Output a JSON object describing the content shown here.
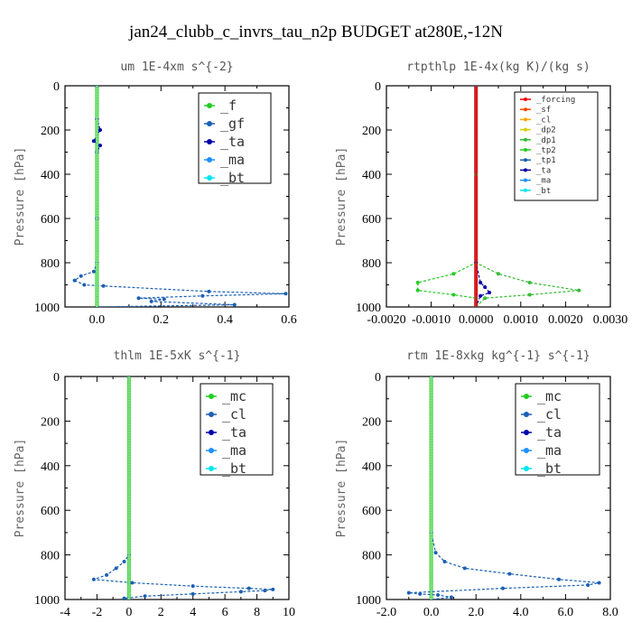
{
  "figure_title": "jan24_clubb_c_invrs_tau_n2p  BUDGET at280E,-12N",
  "chart_data": [
    {
      "type": "line",
      "title": "um   1E-4xm s^{-2}",
      "ylabel": "Pressure [hPa]",
      "xlim": [
        -0.1,
        0.6
      ],
      "xticks": [
        0.0,
        0.2,
        0.4,
        0.6
      ],
      "xtick_labels": [
        "0.0",
        "0.2",
        "0.4",
        "0.6"
      ],
      "ylim": [
        1000,
        0
      ],
      "yticks": [
        0,
        200,
        400,
        600,
        800,
        1000
      ],
      "legend": "top-right",
      "series": [
        {
          "name": "_f",
          "color": "#22cc22",
          "x": [
            0.0,
            0.0,
            0.0,
            0.0,
            0.0,
            0.0
          ],
          "y": [
            0,
            200,
            400,
            600,
            800,
            1000
          ]
        },
        {
          "name": "_gf",
          "color": "#1a5fb4",
          "x": [
            0.0,
            0.0,
            0.0,
            0.0,
            -0.01,
            -0.05,
            -0.07,
            -0.04,
            0.02,
            0.35,
            0.59,
            0.33,
            0.13,
            0.21,
            0.17,
            0.43,
            0.0
          ],
          "y": [
            0,
            300,
            600,
            800,
            840,
            860,
            880,
            900,
            905,
            930,
            940,
            950,
            960,
            965,
            975,
            990,
            1000
          ]
        },
        {
          "name": "_ta",
          "color": "#0000aa",
          "x": [
            0.0,
            0.0,
            0.01,
            -0.01,
            0.01,
            0.0,
            0.0,
            0.0
          ],
          "y": [
            0,
            150,
            200,
            250,
            270,
            300,
            600,
            1000
          ]
        },
        {
          "name": "_ma",
          "color": "#1e90ff",
          "x": [
            0.0,
            0.0,
            0.0,
            0.0
          ],
          "y": [
            0,
            400,
            800,
            1000
          ]
        },
        {
          "name": "_bt",
          "color": "#00e5ee",
          "x": [
            0.0,
            0.0,
            0.0,
            0.0
          ],
          "y": [
            0,
            400,
            800,
            1000
          ]
        }
      ]
    },
    {
      "type": "line",
      "title": "rtpthlp   1E-4x(kg K)/(kg s)",
      "ylabel": "Pressure [hPa]",
      "xlim": [
        -0.002,
        0.003
      ],
      "xticks": [
        -0.002,
        -0.001,
        0.0,
        0.001,
        0.002,
        0.003
      ],
      "xtick_labels": [
        "-0.0020",
        "-0.0010",
        "0.0000",
        "0.0010",
        "0.0020",
        "0.0030"
      ],
      "ylim": [
        1000,
        0
      ],
      "yticks": [
        0,
        200,
        400,
        600,
        800,
        1000
      ],
      "legend": "top-right",
      "series": [
        {
          "name": "_forcing",
          "color": "#ee0000",
          "x": [
            0.0,
            0.0,
            0.0,
            0.0
          ],
          "y": [
            0,
            400,
            800,
            1000
          ]
        },
        {
          "name": "_sf",
          "color": "#ff4400",
          "x": [
            0.0,
            0.0,
            0.0,
            0.0
          ],
          "y": [
            0,
            400,
            800,
            1000
          ]
        },
        {
          "name": "_cl",
          "color": "#ffa500",
          "x": [
            0.0,
            0.0,
            0.0,
            0.0
          ],
          "y": [
            0,
            400,
            800,
            1000
          ]
        },
        {
          "name": "_dp2",
          "color": "#ddcc00",
          "x": [
            0.0,
            0.0,
            0.0,
            0.0
          ],
          "y": [
            0,
            400,
            800,
            1000
          ]
        },
        {
          "name": "_dp1",
          "color": "#33bb33",
          "x": [
            0.0,
            0.0,
            0.0,
            0.0005,
            0.0012,
            0.0023,
            0.0012,
            0.0002,
            0.0
          ],
          "y": [
            0,
            400,
            800,
            850,
            890,
            925,
            945,
            960,
            1000
          ]
        },
        {
          "name": "_tp2",
          "color": "#22cc22",
          "x": [
            0.0,
            0.0,
            0.0,
            -0.0005,
            -0.0013,
            -0.0013,
            -0.0005,
            0.0,
            0.0
          ],
          "y": [
            0,
            400,
            800,
            850,
            890,
            925,
            945,
            960,
            1000
          ]
        },
        {
          "name": "_tp1",
          "color": "#1a5fb4",
          "x": [
            0.0,
            0.0,
            0.0,
            0.0
          ],
          "y": [
            0,
            400,
            800,
            1000
          ]
        },
        {
          "name": "_ta",
          "color": "#0000aa",
          "x": [
            0.0,
            0.0,
            0.0001,
            0.0002,
            0.0003,
            0.0001,
            0.0
          ],
          "y": [
            0,
            800,
            890,
            910,
            935,
            950,
            1000
          ]
        },
        {
          "name": "_ma",
          "color": "#1e90ff",
          "x": [
            0.0,
            0.0,
            0.0,
            0.0
          ],
          "y": [
            0,
            400,
            800,
            1000
          ]
        },
        {
          "name": "_bt",
          "color": "#00e5ee",
          "x": [
            0.0,
            0.0,
            0.0,
            0.0
          ],
          "y": [
            0,
            400,
            800,
            1000
          ]
        }
      ]
    },
    {
      "type": "line",
      "title": "thlm   1E-5xK s^{-1}",
      "ylabel": "Pressure [hPa]",
      "xlim": [
        -4,
        10
      ],
      "xticks": [
        -4,
        -2,
        0,
        2,
        4,
        6,
        8,
        10
      ],
      "xtick_labels": [
        "-4",
        "-2",
        "0",
        "2",
        "4",
        "6",
        "8",
        "10"
      ],
      "ylim": [
        1000,
        0
      ],
      "yticks": [
        0,
        200,
        400,
        600,
        800,
        1000
      ],
      "legend": "top-right",
      "series": [
        {
          "name": "_mc",
          "color": "#22cc22",
          "x": [
            0.0,
            0.0,
            0.0,
            0.0
          ],
          "y": [
            0,
            400,
            800,
            1000
          ]
        },
        {
          "name": "_cl",
          "color": "#1a5fb4",
          "x": [
            0.0,
            0.0,
            -0.3,
            -0.8,
            -1.4,
            -2.2,
            0.2,
            4.0,
            7.5,
            9.0,
            8.5,
            7.0,
            4.0,
            1.0,
            -0.3,
            0.0
          ],
          "y": [
            0,
            800,
            830,
            860,
            890,
            910,
            925,
            940,
            950,
            955,
            960,
            965,
            975,
            985,
            995,
            1000
          ]
        },
        {
          "name": "_ta",
          "color": "#0000aa",
          "x": [
            0.0,
            0.0,
            0.0,
            0.0
          ],
          "y": [
            0,
            400,
            800,
            1000
          ]
        },
        {
          "name": "_ma",
          "color": "#1e90ff",
          "x": [
            0.0,
            0.0,
            0.0,
            0.0
          ],
          "y": [
            0,
            400,
            800,
            1000
          ]
        },
        {
          "name": "_bt",
          "color": "#00e5ee",
          "x": [
            0.0,
            0.0,
            0.0,
            0.0
          ],
          "y": [
            0,
            400,
            800,
            1000
          ]
        }
      ]
    },
    {
      "type": "line",
      "title": "rtm   1E-8xkg kg^{-1} s^{-1}",
      "ylabel": "Pressure [hPa]",
      "xlim": [
        -2.0,
        8.0
      ],
      "xticks": [
        -2.0,
        0.0,
        2.0,
        4.0,
        6.0,
        8.0
      ],
      "xtick_labels": [
        "-2.0",
        "0.0",
        "2.0",
        "4.0",
        "6.0",
        "8.0"
      ],
      "ylim": [
        1000,
        0
      ],
      "yticks": [
        0,
        200,
        400,
        600,
        800,
        1000
      ],
      "legend": "top-right",
      "series": [
        {
          "name": "_mc",
          "color": "#22cc22",
          "x": [
            0.0,
            0.0,
            0.0,
            0.0
          ],
          "y": [
            0,
            400,
            800,
            1000
          ]
        },
        {
          "name": "_cl",
          "color": "#1a5fb4",
          "x": [
            0.0,
            0.0,
            0.2,
            0.6,
            1.5,
            3.5,
            5.7,
            7.5,
            7.0,
            3.2,
            -1.0,
            -0.5,
            0.3,
            0.9,
            0.0
          ],
          "y": [
            0,
            700,
            790,
            830,
            860,
            885,
            910,
            925,
            935,
            950,
            970,
            975,
            980,
            990,
            1000
          ]
        },
        {
          "name": "_ta",
          "color": "#0000aa",
          "x": [
            0.0,
            0.0,
            0.0,
            0.0
          ],
          "y": [
            0,
            400,
            800,
            1000
          ]
        },
        {
          "name": "_ma",
          "color": "#1e90ff",
          "x": [
            0.0,
            0.0,
            0.0,
            0.0
          ],
          "y": [
            0,
            400,
            800,
            1000
          ]
        },
        {
          "name": "_bt",
          "color": "#00e5ee",
          "x": [
            0.0,
            0.0,
            0.0,
            0.0
          ],
          "y": [
            0,
            400,
            800,
            1000
          ]
        }
      ]
    }
  ]
}
